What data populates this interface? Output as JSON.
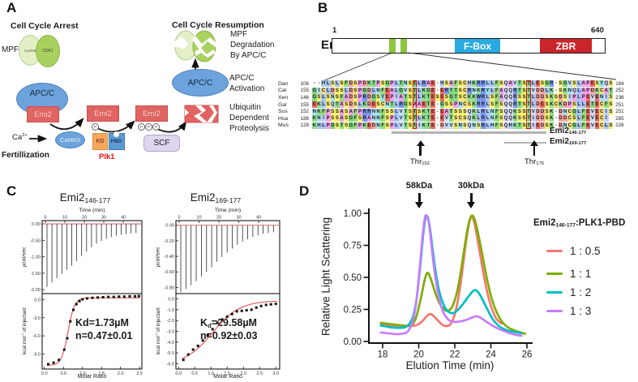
{
  "panel_labels": {
    "a": "A",
    "b": "B",
    "c": "C",
    "d": "D"
  },
  "panel_a": {
    "arrest_title": "Cell Cycle Arrest",
    "resumption_title": "Cell Cycle Resumption",
    "mpf": "MPF",
    "cyclinb": "CyclinB",
    "cdk1": "CDK1",
    "mpf_degradation": "MPF\nDegradation\nBy APC/C",
    "apcc": "APC/C",
    "apcc_activation": "APC/C\nActivation",
    "ubiquitin": "Ubiquitin\nDependent\nProteolysis",
    "emi2": "Emi2",
    "ca_base": "Ca",
    "ca_sup": "2+",
    "camkii": "CaMKII",
    "fertilization": "Fertillization",
    "kd": "KD",
    "pbd": "PBD",
    "plk1": "Plk1",
    "scf": "SCF",
    "phospho": "P",
    "colors": {
      "apcc_fill": "#6da3dc",
      "emi2_fill": "#e06461",
      "cyclinb_fill": "#e3f0c6",
      "cdk1_fill": "#a9d160",
      "kd_fill": "#f4a95c",
      "pbd_fill": "#5b9bd5",
      "scf_fill": "#ded5ee",
      "plk1_text": "#ee1111"
    }
  },
  "panel_b": {
    "emi2_label": "Emi2",
    "domain_start": "1",
    "domain_end": "640",
    "fbox": "F-Box",
    "zbr": "ZBR",
    "colors": {
      "fbox": "#29aae1",
      "zbr": "#c9252b",
      "motif_green": "#8cc63f"
    },
    "fragment1_base": "Emi2",
    "fragment1_sub": "146-177",
    "fragment2_base": "Emi2",
    "fragment2_sub": "169-177",
    "thr1_base": "Thr",
    "thr1_sub": "152",
    "thr2_base": "Thr",
    "thr2_sub": "176",
    "alignment": {
      "aa_colors": {
        "A": "#efa2e9",
        "R": "#7a96f0",
        "N": "#a8e4f0",
        "D": "#f4a7a3",
        "C": "#f7de7e",
        "Q": "#d9d9fb",
        "E": "#f26a62",
        "G": "#7fd87f",
        "H": "#aecdf4",
        "I": "#bcd2f8",
        "K": "#93e093",
        "L": "#a9c3f6",
        "M": "#a9c3f6",
        "F": "#96dd7c",
        "P": "#f79ef2",
        "S": "#f7ef6e",
        "T": "#86dc86",
        "V": "#c4e0fa",
        "W": "#7a96f0",
        "Y": "#8fe3e3"
      },
      "rows": [
        {
          "species": "Dan",
          "start": "106",
          "pre": "--HLSLSFDSPDKTPSGPLTNS",
          "b1": "T",
          "mid": "LRAE-HSAFSCHKRRLLFSQAVTS",
          "b2": "T",
          "tail": "LESGR-SGVSLAPESYQS",
          "end": "184"
        },
        {
          "species": "Cal",
          "start": "155",
          "pre": "GICLDSSLDSPGDLNFEALGVS",
          "b1": "T",
          "mid": "LKGE-ERTTSCRNKRYLFAQQRTS",
          "b2": "T",
          "tail": "VDDLK-SKNQLAPDKCAT",
          "end": "252"
        },
        {
          "species": "Xen",
          "start": "146",
          "pre": "GSLSNSFADSPRDGSYEPIATS",
          "b1": "T",
          "mid": "LKTESESGTSCKKWRLSFAQQRSS",
          "b2": "T",
          "tail": "LDDSKSDSIPLPEVENIS",
          "end": "236"
        },
        {
          "species": "Gal",
          "start": "155",
          "pre": "EKLSQTASDSLKDESCNTLRGS",
          "b1": "A",
          "mid": "AETE-GSSPNCSKRRLSFSQQRTS",
          "b2": "T",
          "tail": "LDESKCKDPSLLETECFS",
          "end": "251"
        },
        {
          "species": "Sus",
          "start": "152",
          "pre": "NKFPSSASAFPRRNNFSSLVTS",
          "b1": "T",
          "mid": "SKTE-EATSSSQKLRLNFSQQKSS",
          "b2": "T",
          "tail": "VDDSK-DNCGLFEVECIS",
          "end": "251"
        },
        {
          "species": "Hsa",
          "start": "186",
          "pre": "KNIPSSASGFSRANNFSPLVTS",
          "b1": "T",
          "mid": "LKTE-EVTSCSQKLRLNFSQQKSS",
          "b2": "T",
          "tail": "IDDSK-DDCSLFEVECI ",
          "end": "285"
        },
        {
          "species": "Mus",
          "start": "128",
          "pre": "KHLPGSTSGFPKEDNFSPLVTS",
          "b1": "T",
          "mid": "IKTE-DVVSNSQNSRLHFSQHKTS",
          "b2": "T",
          "tail": "IEDSK-DNCGLFEVECLS",
          "end": "226"
        }
      ]
    }
  },
  "chart_data": [
    {
      "type": "line",
      "subtype": "itc-titration",
      "title_base": "Emi2",
      "title_sub": "146-177",
      "top_xlabel": "Time (min)",
      "top_xtick_labels": [
        "0",
        "10",
        "20",
        "30",
        "40"
      ],
      "top_xtick_values": [
        0,
        10,
        20,
        30,
        40
      ],
      "top_ylabel": "µcal/sec",
      "top_ytick_labels": [
        "0.00",
        "-0.50",
        "-1.00",
        "-1.50",
        "-2.00"
      ],
      "top_ytick_values": [
        0,
        -0.5,
        -1,
        -1.5,
        -2
      ],
      "top_ylim": [
        0.1,
        -2.12
      ],
      "spikes": [
        1.92,
        1.78,
        1.65,
        1.52,
        1.4,
        1.27,
        1.13,
        0.98,
        0.84,
        0.71,
        0.6,
        0.52,
        0.45,
        0.4,
        0.36,
        0.33,
        0.31,
        0.29,
        0.28
      ],
      "bot_ylabel_pre": "kcal mol",
      "bot_ylabel_sup": "-1",
      "bot_ylabel_post": " of injectant",
      "bot_xlabel": "Molar Ratio",
      "bot_xtick_labels": [
        "0.0",
        "0.5",
        "1.0",
        "1.5",
        "2.0",
        "2.5"
      ],
      "bot_xtick_values": [
        0,
        0.5,
        1,
        1.5,
        2,
        2.5
      ],
      "bot_ytick_labels": [
        "0.0",
        "-3.0",
        "-6.0",
        "-9.0"
      ],
      "bot_ytick_values": [
        0,
        -3,
        -6,
        -9
      ],
      "bot_ylim": [
        1.0,
        -11.5
      ],
      "xlim": [
        -0.06,
        2.56
      ],
      "points": [
        [
          0.1,
          -10.7
        ],
        [
          0.24,
          -10.45
        ],
        [
          0.38,
          -10.0
        ],
        [
          0.52,
          -8.3
        ],
        [
          0.6,
          -6.4
        ],
        [
          0.68,
          -3.6
        ],
        [
          0.76,
          -1.7
        ],
        [
          0.84,
          -0.75
        ],
        [
          0.92,
          -0.25
        ],
        [
          1.0,
          0.05
        ],
        [
          1.12,
          0.2
        ],
        [
          1.26,
          0.3
        ],
        [
          1.4,
          0.35
        ],
        [
          1.54,
          0.4
        ],
        [
          1.68,
          0.45
        ],
        [
          1.82,
          0.45
        ],
        [
          1.96,
          0.5
        ],
        [
          2.1,
          0.5
        ],
        [
          2.24,
          0.55
        ],
        [
          2.38,
          0.55
        ],
        [
          2.48,
          0.6
        ]
      ],
      "fit": {
        "plateau": 0.3,
        "span": -11.2,
        "x0": 0.62,
        "k": 0.085
      },
      "kd_base": "Kd",
      "kd_sub": "",
      "kd_rest": "=1.73µM",
      "n_label": "n=0.47±0.01"
    },
    {
      "type": "line",
      "subtype": "itc-titration",
      "title_base": "Emi2",
      "title_sub": "169-177",
      "top_xlabel": "Time (min)",
      "top_xtick_labels": [
        "0",
        "10",
        "20",
        "30",
        "40"
      ],
      "top_xtick_values": [
        0,
        10,
        20,
        30,
        40
      ],
      "top_ylabel": "µcal/sec",
      "top_ytick_labels": [
        "0.00",
        "-0.20",
        "-0.40",
        "-0.60",
        "-0.80"
      ],
      "top_ytick_values": [
        0,
        -0.2,
        -0.4,
        -0.6,
        -0.8
      ],
      "top_ylim": [
        0.06,
        -0.88
      ],
      "spikes": [
        0.86,
        0.82,
        0.77,
        0.72,
        0.66,
        0.6,
        0.54,
        0.47,
        0.41,
        0.35,
        0.3,
        0.25,
        0.21,
        0.18,
        0.15,
        0.13,
        0.11,
        0.1,
        0.09
      ],
      "bot_ylabel_pre": "kcal mol",
      "bot_ylabel_sup": "-1",
      "bot_ylabel_post": " of injectant",
      "bot_xlabel": "Molar Ratio",
      "bot_xtick_labels": [
        "0.0",
        "0.5",
        "1.0",
        "1.5",
        "2.0",
        "2.5",
        "3.0"
      ],
      "bot_xtick_values": [
        0,
        0.5,
        1,
        1.5,
        2,
        2.5,
        3
      ],
      "bot_ytick_labels": [
        "0.0",
        "-1.0",
        "-2.0",
        "-3.0",
        "-4.0",
        "-5.0",
        "-6.0"
      ],
      "bot_ytick_values": [
        0,
        -1,
        -2,
        -3,
        -4,
        -5,
        -6
      ],
      "bot_ylim": [
        0.5,
        -6.5
      ],
      "xlim": [
        -0.08,
        3.12
      ],
      "points": [
        [
          0.15,
          -5.65
        ],
        [
          0.3,
          -5.15
        ],
        [
          0.45,
          -4.7
        ],
        [
          0.6,
          -4.35
        ],
        [
          0.75,
          -3.85
        ],
        [
          0.9,
          -3.35
        ],
        [
          1.05,
          -2.8
        ],
        [
          1.2,
          -2.2
        ],
        [
          1.35,
          -1.9
        ],
        [
          1.5,
          -1.65
        ],
        [
          1.65,
          -1.4
        ],
        [
          1.8,
          -1.15
        ],
        [
          1.95,
          -1.1
        ],
        [
          2.1,
          -1.05
        ],
        [
          2.25,
          -1.0
        ],
        [
          2.4,
          -0.8
        ],
        [
          2.55,
          -0.65
        ],
        [
          2.7,
          -0.55
        ],
        [
          2.85,
          -0.5
        ],
        [
          3.0,
          -0.45
        ]
      ],
      "fit": {
        "plateau": -0.15,
        "span": -5.95,
        "x0": 1.05,
        "k": 0.42
      },
      "kd_base": "K",
      "kd_sub": "d",
      "kd_rest": "=29.58µM",
      "n_label": "n=0.92±0.03"
    },
    {
      "type": "line",
      "subtype": "sec-mals",
      "ylabel": "Relative Light Scattering",
      "xlabel": "Elution Time (min)",
      "ytick_labels": [
        "0.00",
        "0.25",
        "0.50",
        "0.75",
        "1.00"
      ],
      "ytick_values": [
        0,
        0.25,
        0.5,
        0.75,
        1
      ],
      "xtick_labels": [
        "18",
        "20",
        "22",
        "24",
        "26"
      ],
      "xtick_values": [
        18,
        20,
        22,
        24,
        26
      ],
      "xlim": [
        17.85,
        26.3
      ],
      "ylim": [
        0,
        1.0
      ],
      "legend_position": "right",
      "grid": false,
      "annotations": [
        {
          "label": "58kDa",
          "x": 20.35
        },
        {
          "label": "30kDa",
          "x": 22.9
        }
      ],
      "legend_title_base": "Emi2",
      "legend_title_sub": "146-177",
      "legend_title_rest": ":PLK1-PBD",
      "series": [
        {
          "name": "1 : 0.5",
          "color": "#F8766D",
          "points": [
            [
              17.9,
              0.135
            ],
            [
              18.5,
              0.125
            ],
            [
              19.0,
              0.12
            ],
            [
              19.5,
              0.12
            ],
            [
              19.9,
              0.125
            ],
            [
              20.2,
              0.155
            ],
            [
              20.45,
              0.2
            ],
            [
              20.65,
              0.22
            ],
            [
              20.9,
              0.19
            ],
            [
              21.2,
              0.14
            ],
            [
              21.5,
              0.115
            ],
            [
              21.8,
              0.13
            ],
            [
              22.1,
              0.25
            ],
            [
              22.4,
              0.52
            ],
            [
              22.65,
              0.82
            ],
            [
              22.9,
              1.0
            ],
            [
              23.1,
              0.93
            ],
            [
              23.4,
              0.68
            ],
            [
              23.7,
              0.44
            ],
            [
              24.0,
              0.27
            ],
            [
              24.3,
              0.17
            ],
            [
              24.6,
              0.14
            ]
          ]
        },
        {
          "name": "1 : 1",
          "color": "#7CAE00",
          "points": [
            [
              17.9,
              0.145
            ],
            [
              18.5,
              0.135
            ],
            [
              19.0,
              0.125
            ],
            [
              19.5,
              0.12
            ],
            [
              19.8,
              0.15
            ],
            [
              20.1,
              0.32
            ],
            [
              20.35,
              0.5
            ],
            [
              20.5,
              0.55
            ],
            [
              20.7,
              0.48
            ],
            [
              21.0,
              0.34
            ],
            [
              21.3,
              0.26
            ],
            [
              21.6,
              0.23
            ],
            [
              21.9,
              0.27
            ],
            [
              22.2,
              0.42
            ],
            [
              22.5,
              0.7
            ],
            [
              22.75,
              0.92
            ],
            [
              22.95,
              1.0
            ],
            [
              23.15,
              0.94
            ],
            [
              23.5,
              0.7
            ],
            [
              23.8,
              0.47
            ],
            [
              24.1,
              0.3
            ],
            [
              24.5,
              0.17
            ],
            [
              24.9,
              0.11
            ],
            [
              25.4,
              0.08
            ],
            [
              25.9,
              0.06
            ]
          ]
        },
        {
          "name": "1 : 2",
          "color": "#00BFC4",
          "points": [
            [
              17.9,
              0.125
            ],
            [
              18.4,
              0.11
            ],
            [
              18.9,
              0.105
            ],
            [
              19.4,
              0.11
            ],
            [
              19.8,
              0.22
            ],
            [
              20.1,
              0.6
            ],
            [
              20.3,
              0.92
            ],
            [
              20.45,
              1.0
            ],
            [
              20.6,
              0.92
            ],
            [
              20.85,
              0.62
            ],
            [
              21.1,
              0.4
            ],
            [
              21.4,
              0.27
            ],
            [
              21.7,
              0.22
            ],
            [
              22.0,
              0.22
            ],
            [
              22.4,
              0.28
            ],
            [
              22.8,
              0.36
            ],
            [
              23.1,
              0.41
            ],
            [
              23.35,
              0.38
            ],
            [
              23.7,
              0.28
            ],
            [
              24.1,
              0.17
            ],
            [
              24.5,
              0.11
            ],
            [
              25.0,
              0.08
            ],
            [
              25.7,
              0.065
            ]
          ]
        },
        {
          "name": "1 : 3",
          "color": "#C77CFF",
          "points": [
            [
              17.9,
              0.07
            ],
            [
              18.5,
              0.06
            ],
            [
              19.0,
              0.055
            ],
            [
              19.5,
              0.075
            ],
            [
              19.85,
              0.25
            ],
            [
              20.1,
              0.65
            ],
            [
              20.3,
              0.95
            ],
            [
              20.42,
              1.0
            ],
            [
              20.58,
              0.93
            ],
            [
              20.8,
              0.62
            ],
            [
              21.05,
              0.38
            ],
            [
              21.3,
              0.24
            ],
            [
              21.6,
              0.17
            ],
            [
              21.9,
              0.15
            ],
            [
              22.3,
              0.155
            ],
            [
              22.7,
              0.17
            ],
            [
              23.0,
              0.19
            ],
            [
              23.25,
              0.2
            ],
            [
              23.6,
              0.17
            ],
            [
              24.0,
              0.13
            ],
            [
              24.4,
              0.1
            ],
            [
              24.9,
              0.07
            ],
            [
              25.4,
              0.05
            ],
            [
              25.7,
              0.045
            ]
          ]
        }
      ]
    }
  ]
}
